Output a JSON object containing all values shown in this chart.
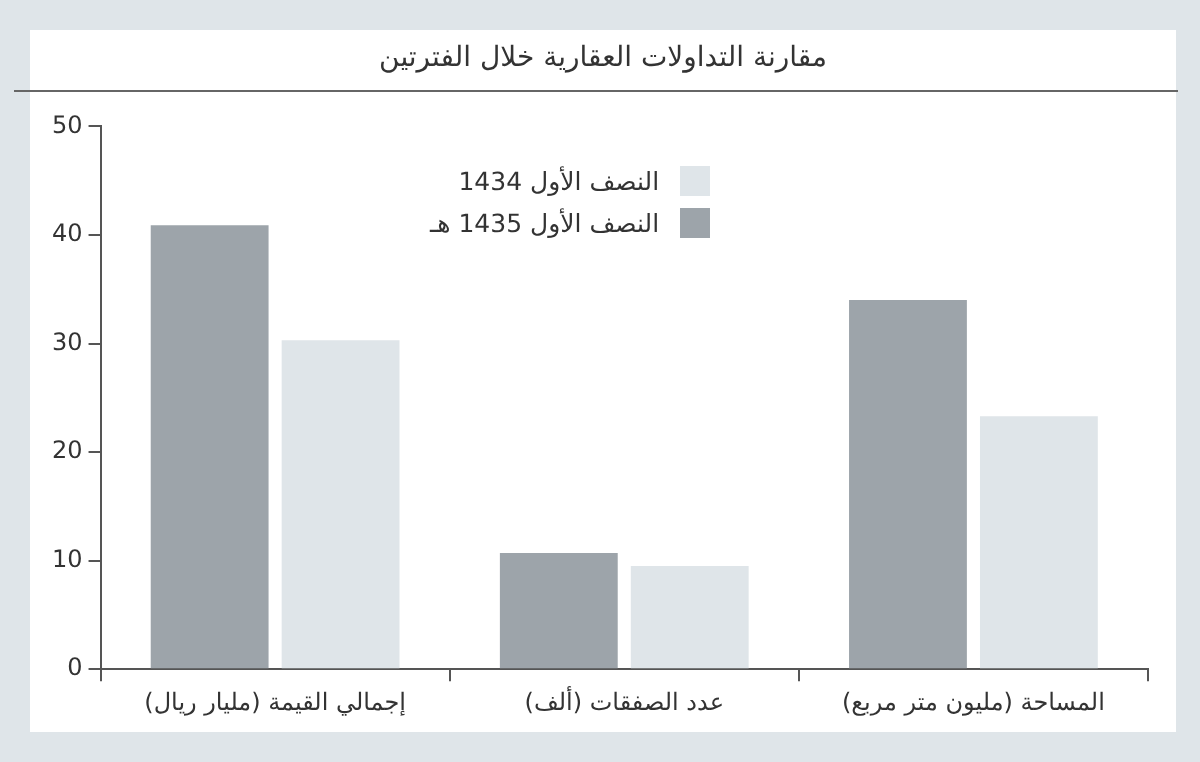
{
  "chart_data": {
    "type": "bar",
    "title": "مقارنة التداولات العقارية خلال الفترتين",
    "categories": [
      "إجمالي القيمة (مليار ريال)",
      "عدد الصفقات (ألف)",
      "المساحة (مليون متر مربع)"
    ],
    "series": [
      {
        "name": "النصف الأول 1435 هـ",
        "color": "#9da4aa",
        "values": [
          40.9,
          10.7,
          34.0
        ]
      },
      {
        "name": "النصف الأول 1434",
        "color": "#dfe5e9",
        "values": [
          30.3,
          9.5,
          23.3
        ]
      }
    ],
    "ylim": [
      0,
      50
    ],
    "yticks": [
      0,
      10,
      20,
      30,
      40,
      50
    ],
    "grid": false,
    "legend": "top"
  }
}
